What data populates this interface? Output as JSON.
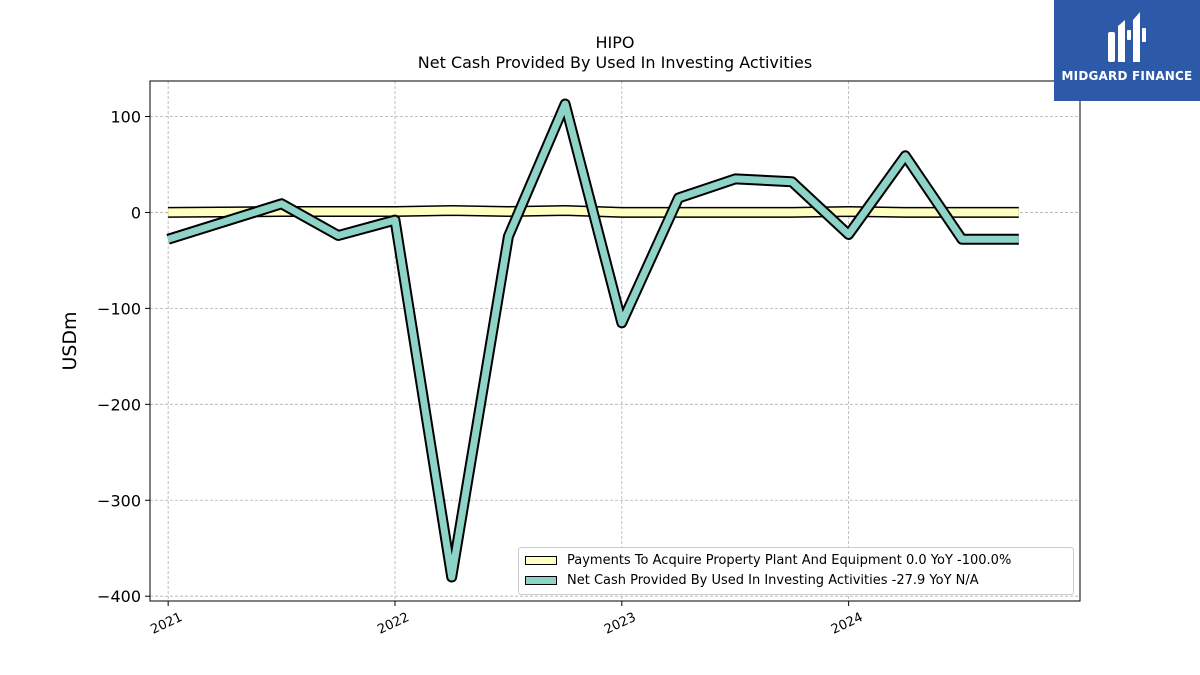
{
  "header": {
    "title": "HIPO",
    "subtitle": "Net Cash Provided By Used In Investing Activities"
  },
  "logo": {
    "text": "MIDGARD FINANCE",
    "background": "#2d5aa8"
  },
  "legend": {
    "placement": "lower-right",
    "items": [
      "Payments To Acquire Property Plant And Equipment  0.0 YoY -100.0%",
      "Net Cash Provided By Used In Investing Activities  -27.9 YoY N/A"
    ]
  },
  "chart_data": {
    "type": "line",
    "title": "HIPO",
    "subtitle": "Net Cash Provided By Used In Investing Activities",
    "xlabel": "",
    "ylabel": "USDm",
    "xlim": [
      2020.92,
      2025.02
    ],
    "ylim": [
      -405,
      137
    ],
    "yticks": [
      100,
      0,
      -100,
      -200,
      -300,
      -400
    ],
    "ytick_labels": [
      "100",
      "0",
      "−100",
      "−200",
      "−300",
      "−400"
    ],
    "xticks": [
      2021,
      2022,
      2023,
      2024
    ],
    "xtick_labels": [
      "2021",
      "2022",
      "2023",
      "2024"
    ],
    "grid": true,
    "x": [
      2021.0,
      2021.5,
      2021.75,
      2022.0,
      2022.25,
      2022.5,
      2022.75,
      2023.0,
      2023.25,
      2023.5,
      2023.75,
      2024.0,
      2024.25,
      2024.5,
      2024.75
    ],
    "series": [
      {
        "name": "Payments To Acquire Property Plant And Equipment",
        "color": "#ffffc0",
        "values": [
          0,
          1,
          1,
          1,
          2,
          1,
          2,
          0,
          0,
          0,
          0,
          1,
          0,
          0,
          0
        ]
      },
      {
        "name": "Net Cash Provided By Used In Investing Activities",
        "color": "#8dd3c7",
        "values": [
          -28,
          9,
          -24,
          -8,
          -380,
          -25,
          113,
          -115,
          15,
          35,
          32,
          -23,
          59,
          -28,
          -28
        ]
      }
    ]
  }
}
